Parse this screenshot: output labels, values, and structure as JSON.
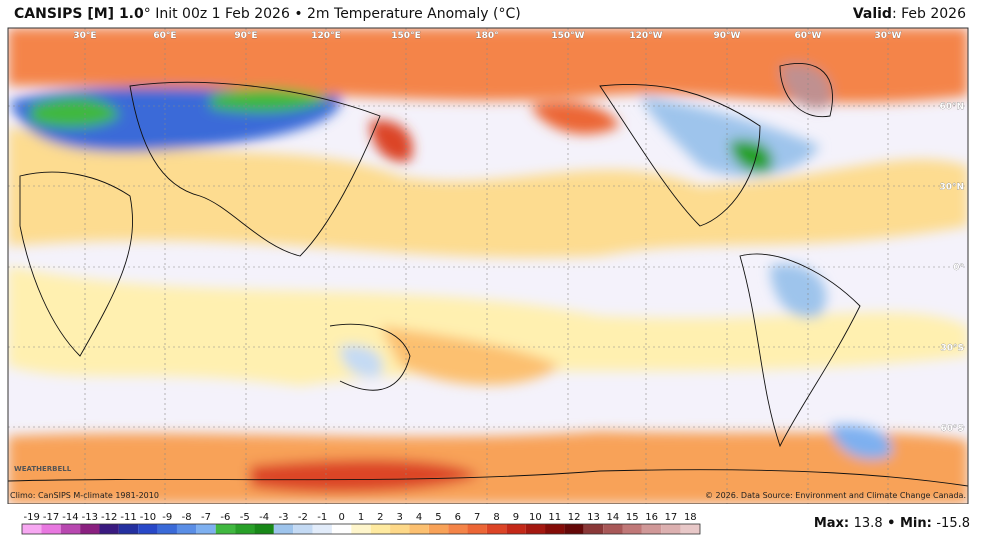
{
  "header": {
    "title_bold": "CANSIPS [M] 1.0",
    "title_rest": "° Init 00z 1 Feb 2026 • 2m Temperature Anomaly (°C)",
    "valid_label": "Valid",
    "valid_value": ": Feb 2026"
  },
  "map": {
    "lon_labels": [
      "30°E",
      "60°E",
      "90°E",
      "120°E",
      "150°E",
      "180°",
      "150°W",
      "120°W",
      "90°W",
      "60°W",
      "30°W"
    ],
    "lat_labels": [
      "60°N",
      "30°N",
      "0°",
      "30°S",
      "60°S"
    ],
    "climo": "Climo: CanSIPS M-climate 1981-2010",
    "copyright": "© 2026. Data Source: Environment and Climate Change Canada.",
    "logo": "WEATHERBELL"
  },
  "colorbar": {
    "ticks": [
      -19,
      -17,
      -14,
      -13,
      -12,
      -11,
      -10,
      -9,
      -8,
      -7,
      -6,
      -5,
      -4,
      -3,
      -2,
      -1,
      0,
      1,
      2,
      3,
      4,
      5,
      6,
      7,
      8,
      9,
      10,
      11,
      12,
      13,
      14,
      15,
      16,
      17,
      18
    ],
    "colors": [
      "#f7a8f2",
      "#e878e0",
      "#b848b0",
      "#8a2080",
      "#3a1a80",
      "#2430a0",
      "#2848c8",
      "#3a6ad8",
      "#5a8ee6",
      "#7eb0f0",
      "#40b840",
      "#28a028",
      "#188818",
      "#9ec4ec",
      "#c4daf4",
      "#e2ecfa",
      "#ffffff",
      "#fff6cc",
      "#ffeaa0",
      "#fdd888",
      "#fcc070",
      "#f8a258",
      "#f48448",
      "#ec6636",
      "#dc4426",
      "#c42818",
      "#a41810",
      "#840c08",
      "#640808",
      "#8a3838",
      "#a85858",
      "#c07878",
      "#d09898",
      "#dcb0b0",
      "#e8c8c8"
    ]
  },
  "stats": {
    "max_label": "Max:",
    "max": 13.8,
    "separator": "•",
    "min_label": "Min:",
    "min": -15.8
  }
}
